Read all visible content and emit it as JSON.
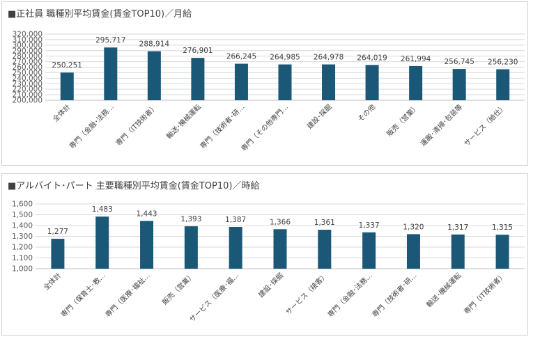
{
  "chart_data": [
    {
      "type": "bar",
      "title": "■正社員 職種別平均賃金(賃金TOP10)／月給",
      "categories": [
        "全体計",
        "専門（金融･法務…",
        "専門（IT技術者）",
        "輸送･機械運転",
        "専門（技術者･研…",
        "専門（その他専門…",
        "建設･採掘",
        "その他",
        "販売（営業）",
        "運搬･清掃･包装等",
        "サービス（給仕）"
      ],
      "values": [
        250251,
        295717,
        288914,
        276901,
        266245,
        264985,
        264978,
        264019,
        261994,
        256745,
        256230
      ],
      "value_labels": [
        "250,251",
        "295,717",
        "288,914",
        "276,901",
        "266,245",
        "264,985",
        "264,978",
        "264,019",
        "261,994",
        "256,745",
        "256,230"
      ],
      "ylim": [
        200000,
        320000
      ],
      "yticks": [
        200000,
        210000,
        220000,
        230000,
        240000,
        250000,
        260000,
        270000,
        280000,
        290000,
        300000,
        310000,
        320000
      ],
      "ytick_labels": [
        "200,000",
        "210,000",
        "220,000",
        "230,000",
        "240,000",
        "250,000",
        "260,000",
        "270,000",
        "280,000",
        "290,000",
        "300,000",
        "310,000",
        "320,000"
      ],
      "grid": true,
      "bar_color": "#1b5878",
      "xlabel": "",
      "ylabel": ""
    },
    {
      "type": "bar",
      "title": "■アルバイト･パート 主要職種別平均賃金(賃金TOP10)／時給",
      "categories": [
        "全体計",
        "専門（保育士･教…",
        "専門（医療･福祉…",
        "販売（営業）",
        "サービス（医療･福…",
        "建設･採掘",
        "サービス（接客）",
        "専門（金融･法務…",
        "専門（技術者･研…",
        "輸送･機械運転",
        "専門（IT技術者）"
      ],
      "values": [
        1277,
        1483,
        1443,
        1393,
        1387,
        1366,
        1361,
        1337,
        1320,
        1317,
        1315
      ],
      "value_labels": [
        "1,277",
        "1,483",
        "1,443",
        "1,393",
        "1,387",
        "1,366",
        "1,361",
        "1,337",
        "1,320",
        "1,317",
        "1,315"
      ],
      "ylim": [
        1000,
        1600
      ],
      "yticks": [
        1000,
        1100,
        1200,
        1300,
        1400,
        1500,
        1600
      ],
      "ytick_labels": [
        "1,000",
        "1,100",
        "1,200",
        "1,300",
        "1,400",
        "1,500",
        "1,600"
      ],
      "grid": true,
      "bar_color": "#1b5878",
      "xlabel": "",
      "ylabel": ""
    }
  ]
}
